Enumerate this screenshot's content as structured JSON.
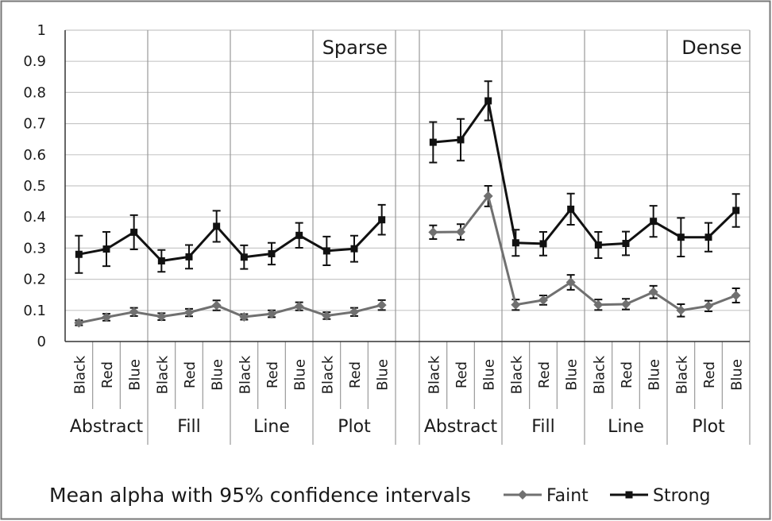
{
  "chart_data": {
    "type": "line",
    "caption": "Mean alpha with 95% confidence intervals",
    "yticks": [
      "0",
      "0.1",
      "0.2",
      "0.3",
      "0.4",
      "0.5",
      "0.6",
      "0.7",
      "0.8",
      "0.9",
      "1"
    ],
    "ylim": [
      0,
      1
    ],
    "grid": true,
    "legend_position": "bottom-right",
    "panels": [
      {
        "label": "Sparse",
        "groups": [
          {
            "name": "Abstract",
            "categories": [
              "Black",
              "Red",
              "Blue"
            ]
          },
          {
            "name": "Fill",
            "categories": [
              "Black",
              "Red",
              "Blue"
            ]
          },
          {
            "name": "Line",
            "categories": [
              "Black",
              "Red",
              "Blue"
            ]
          },
          {
            "name": "Plot",
            "categories": [
              "Black",
              "Red",
              "Blue"
            ]
          }
        ],
        "series": [
          {
            "name": "Faint",
            "marker": "diamond",
            "color": "#707070",
            "values": [
              0.06,
              0.078,
              0.095,
              0.08,
              0.093,
              0.116,
              0.079,
              0.089,
              0.113,
              0.083,
              0.095,
              0.117
            ],
            "errors": [
              0.008,
              0.011,
              0.013,
              0.011,
              0.012,
              0.016,
              0.009,
              0.011,
              0.013,
              0.011,
              0.013,
              0.016
            ]
          },
          {
            "name": "Strong",
            "marker": "square",
            "color": "#111111",
            "values": [
              0.28,
              0.297,
              0.351,
              0.259,
              0.272,
              0.37,
              0.271,
              0.282,
              0.341,
              0.291,
              0.298,
              0.391
            ],
            "errors": [
              0.06,
              0.055,
              0.055,
              0.035,
              0.038,
              0.05,
              0.038,
              0.035,
              0.04,
              0.046,
              0.042,
              0.048
            ]
          }
        ]
      },
      {
        "label": "Dense",
        "groups": [
          {
            "name": "Abstract",
            "categories": [
              "Black",
              "Red",
              "Blue"
            ]
          },
          {
            "name": "Fill",
            "categories": [
              "Black",
              "Red",
              "Blue"
            ]
          },
          {
            "name": "Line",
            "categories": [
              "Black",
              "Red",
              "Blue"
            ]
          },
          {
            "name": "Plot",
            "categories": [
              "Black",
              "Red",
              "Blue"
            ]
          }
        ],
        "series": [
          {
            "name": "Faint",
            "marker": "diamond",
            "color": "#707070",
            "values": [
              0.351,
              0.352,
              0.467,
              0.118,
              0.133,
              0.19,
              0.118,
              0.12,
              0.159,
              0.1,
              0.114,
              0.148
            ],
            "errors": [
              0.022,
              0.025,
              0.033,
              0.017,
              0.015,
              0.024,
              0.017,
              0.017,
              0.02,
              0.02,
              0.017,
              0.023
            ]
          },
          {
            "name": "Strong",
            "marker": "square",
            "color": "#111111",
            "values": [
              0.64,
              0.648,
              0.773,
              0.317,
              0.314,
              0.425,
              0.31,
              0.315,
              0.386,
              0.335,
              0.335,
              0.421
            ],
            "errors": [
              0.065,
              0.067,
              0.063,
              0.042,
              0.038,
              0.05,
              0.042,
              0.038,
              0.05,
              0.062,
              0.046,
              0.053
            ]
          }
        ]
      }
    ]
  }
}
